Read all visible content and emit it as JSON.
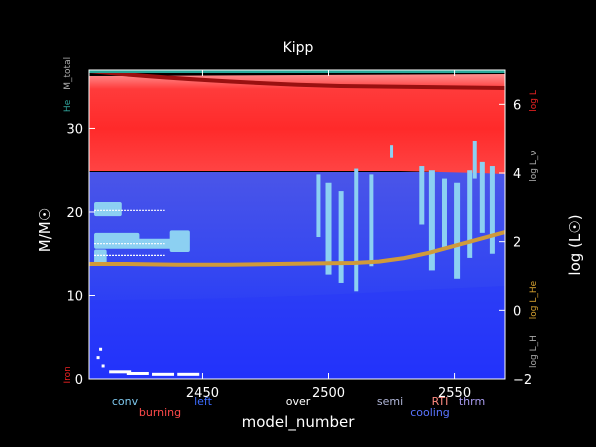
{
  "chart_data": {
    "type": "area",
    "title": "Kipp",
    "xlabel": "model_number",
    "ylabel": "M/M☉",
    "y2label": "log (L☉)",
    "xlim": [
      2405,
      2570
    ],
    "ylim": [
      0,
      37
    ],
    "y2lim": [
      -2,
      7
    ],
    "xticks": [
      2450,
      2500,
      2550
    ],
    "yticks": [
      0,
      10,
      20,
      30
    ],
    "y2ticks": [
      -2,
      0,
      2,
      4,
      6
    ],
    "left_side_labels": [
      {
        "text": "M_total",
        "color": "#aaaaaa",
        "y": 36.6
      },
      {
        "text": "He",
        "color": "#2fa39a",
        "y": 32.7
      },
      {
        "text": "Iron",
        "color": "#ee2222",
        "y": 0.5
      }
    ],
    "right_side_labels": [
      {
        "text": "log L",
        "color": "#ee2222",
        "y2": 6.1
      },
      {
        "text": "log L_ν",
        "color": "#aaaaaa",
        "y2": 4.2
      },
      {
        "text": "log L_He",
        "color": "#d6a12f",
        "y2": 0.3
      },
      {
        "text": "log L_H",
        "color": "#aaaaaa",
        "y2": -1.2
      }
    ],
    "legend_row1": [
      {
        "text": "conv",
        "color": "#7ec8ee"
      },
      {
        "text": "left",
        "color": "#3c6cff"
      },
      {
        "text": "over",
        "color": "#ffffff"
      },
      {
        "text": "semi",
        "color": "#b0b6d8"
      },
      {
        "text": "RTI",
        "color": "#ff8a80"
      },
      {
        "text": "thrm",
        "color": "#a99cf0"
      }
    ],
    "legend_row2": [
      {
        "text": "burning",
        "color": "#ff4a4a"
      },
      {
        "text": "cooling",
        "color": "#5a74ff"
      }
    ],
    "series": [
      {
        "name": "log L",
        "color": "#d09a3a",
        "x": [
          2405,
          2420,
          2440,
          2460,
          2480,
          2500,
          2510,
          2520,
          2530,
          2540,
          2550,
          2560,
          2570
        ],
        "y": [
          1.35,
          1.35,
          1.33,
          1.33,
          1.35,
          1.37,
          1.38,
          1.42,
          1.52,
          1.68,
          1.88,
          2.08,
          2.28
        ]
      }
    ],
    "colors": {
      "background": "#000000",
      "burning_top": "#ff2a2a",
      "burning_band": "#ff6060",
      "cooling_top": "#3a48ee",
      "cooling_bottom": "#1a2aff",
      "convection": "#8cd0f2",
      "total_mass_line": "#9a1010",
      "teal": "#2aa99a",
      "luminosity": "#d09a3a"
    }
  }
}
